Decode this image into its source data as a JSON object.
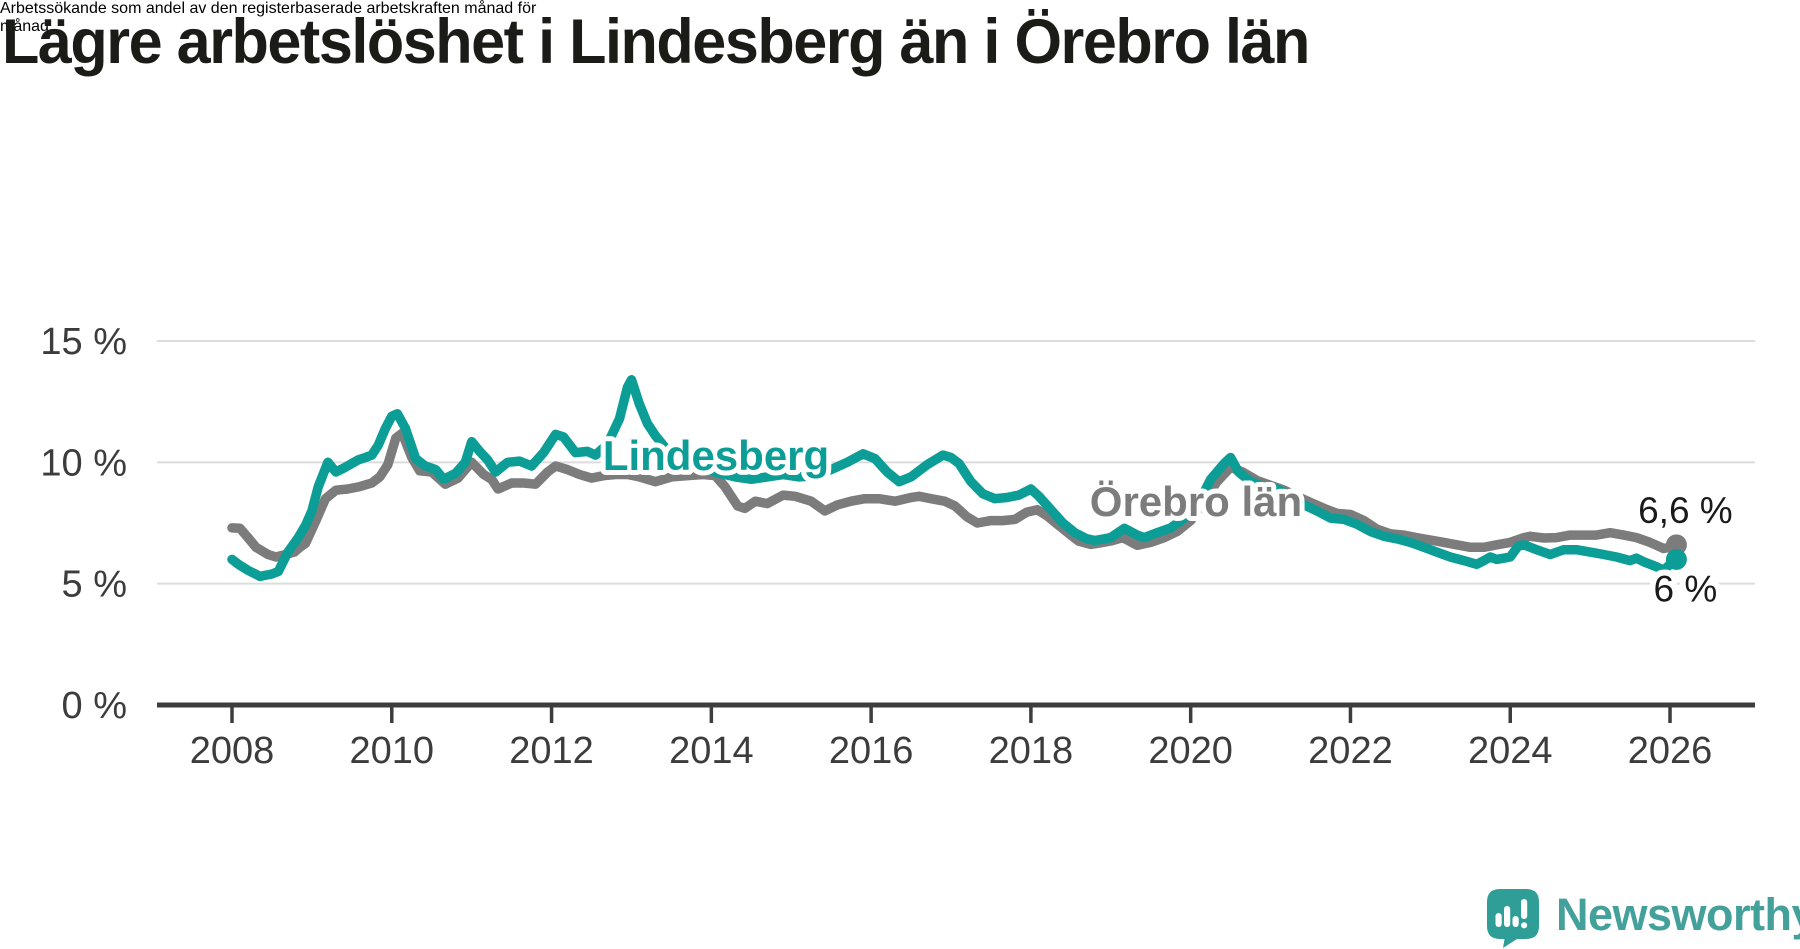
{
  "header": {
    "title": "Lägre arbetslöshet i Lindesberg än i Örebro län",
    "subtitle_lines": [
      "Arbetssökande som andel av den registerbaserade arbetskraften månad för",
      "månad."
    ]
  },
  "branding": {
    "name": "Newsworthy",
    "logo_icon": "newsworthy-speech-bubble-bars-icon"
  },
  "colors": {
    "lindesberg_teal": "#0c9e96",
    "orebro_gray": "#7c7c7c",
    "text_dark": "#1a1a1a",
    "axis_text": "#3c3c3c",
    "gridline": "#dcdcdc",
    "axis_line": "#3d3d3d",
    "logo_teal": "#2f9e97",
    "wordmark_teal": "#43a09b"
  },
  "chart_data": {
    "type": "line",
    "title": "Lägre arbetslöshet i Lindesberg än i Örebro län",
    "subtitle": "Arbetssökande som andel av den registerbaserade arbetskraften månad för månad.",
    "unit": "%",
    "grid": "horizontal",
    "legend_position": "inline-series-labels",
    "x_axis": {
      "tick_years": [
        2008,
        2010,
        2012,
        2014,
        2016,
        2018,
        2020,
        2022,
        2024,
        2026
      ],
      "min": 2007.05,
      "max": 2027.1
    },
    "y_axis": {
      "ticks": [
        0,
        5,
        10,
        15
      ],
      "tick_labels": [
        "0 %",
        "5 %",
        "10 %",
        "15 %"
      ],
      "min": 0,
      "max": 15.5
    },
    "series": [
      {
        "name": "Lindesberg",
        "color": "#0c9e96",
        "end_value": 6.0,
        "end_label": "6 %",
        "points": [
          [
            2008.0,
            6.0
          ],
          [
            2008.08,
            5.8
          ],
          [
            2008.2,
            5.55
          ],
          [
            2008.35,
            5.3
          ],
          [
            2008.5,
            5.4
          ],
          [
            2008.58,
            5.5
          ],
          [
            2008.7,
            6.3
          ],
          [
            2008.83,
            6.9
          ],
          [
            2008.92,
            7.4
          ],
          [
            2009.0,
            8.0
          ],
          [
            2009.08,
            9.0
          ],
          [
            2009.2,
            10.0
          ],
          [
            2009.3,
            9.6
          ],
          [
            2009.42,
            9.8
          ],
          [
            2009.5,
            9.95
          ],
          [
            2009.58,
            10.1
          ],
          [
            2009.67,
            10.2
          ],
          [
            2009.75,
            10.3
          ],
          [
            2009.83,
            10.7
          ],
          [
            2009.92,
            11.4
          ],
          [
            2010.0,
            11.9
          ],
          [
            2010.07,
            12.0
          ],
          [
            2010.17,
            11.4
          ],
          [
            2010.3,
            10.15
          ],
          [
            2010.42,
            9.85
          ],
          [
            2010.55,
            9.7
          ],
          [
            2010.65,
            9.3
          ],
          [
            2010.8,
            9.55
          ],
          [
            2010.92,
            10.0
          ],
          [
            2011.0,
            10.85
          ],
          [
            2011.1,
            10.45
          ],
          [
            2011.2,
            10.1
          ],
          [
            2011.3,
            9.6
          ],
          [
            2011.45,
            10.0
          ],
          [
            2011.6,
            10.05
          ],
          [
            2011.75,
            9.85
          ],
          [
            2011.9,
            10.4
          ],
          [
            2012.05,
            11.15
          ],
          [
            2012.15,
            11.05
          ],
          [
            2012.3,
            10.4
          ],
          [
            2012.45,
            10.45
          ],
          [
            2012.55,
            10.3
          ],
          [
            2012.7,
            10.75
          ],
          [
            2012.85,
            11.8
          ],
          [
            2012.95,
            13.1
          ],
          [
            2013.0,
            13.4
          ],
          [
            2013.1,
            12.4
          ],
          [
            2013.2,
            11.6
          ],
          [
            2013.3,
            11.1
          ],
          [
            2013.5,
            10.3
          ],
          [
            2013.7,
            9.95
          ],
          [
            2013.9,
            9.75
          ],
          [
            2014.1,
            9.55
          ],
          [
            2014.3,
            9.4
          ],
          [
            2014.5,
            9.3
          ],
          [
            2014.7,
            9.4
          ],
          [
            2014.9,
            9.5
          ],
          [
            2015.1,
            9.4
          ],
          [
            2015.3,
            9.45
          ],
          [
            2015.5,
            9.7
          ],
          [
            2015.7,
            10.0
          ],
          [
            2015.9,
            10.35
          ],
          [
            2016.05,
            10.15
          ],
          [
            2016.2,
            9.6
          ],
          [
            2016.35,
            9.2
          ],
          [
            2016.5,
            9.4
          ],
          [
            2016.7,
            9.9
          ],
          [
            2016.9,
            10.3
          ],
          [
            2017.0,
            10.2
          ],
          [
            2017.1,
            9.95
          ],
          [
            2017.25,
            9.2
          ],
          [
            2017.4,
            8.7
          ],
          [
            2017.55,
            8.5
          ],
          [
            2017.7,
            8.55
          ],
          [
            2017.85,
            8.65
          ],
          [
            2018.0,
            8.9
          ],
          [
            2018.1,
            8.6
          ],
          [
            2018.25,
            8.05
          ],
          [
            2018.4,
            7.5
          ],
          [
            2018.55,
            7.1
          ],
          [
            2018.7,
            6.85
          ],
          [
            2018.8,
            6.78
          ],
          [
            2018.92,
            6.85
          ],
          [
            2019.0,
            6.9
          ],
          [
            2019.17,
            7.28
          ],
          [
            2019.33,
            7.0
          ],
          [
            2019.42,
            6.9
          ],
          [
            2019.58,
            7.1
          ],
          [
            2019.75,
            7.3
          ],
          [
            2019.92,
            7.7
          ],
          [
            2020.08,
            8.2
          ],
          [
            2020.25,
            9.3
          ],
          [
            2020.42,
            9.95
          ],
          [
            2020.5,
            10.2
          ],
          [
            2020.6,
            9.6
          ],
          [
            2020.75,
            9.2
          ],
          [
            2020.92,
            9.0
          ],
          [
            2021.08,
            8.9
          ],
          [
            2021.25,
            8.6
          ],
          [
            2021.42,
            8.25
          ],
          [
            2021.58,
            8.0
          ],
          [
            2021.75,
            7.7
          ],
          [
            2021.92,
            7.65
          ],
          [
            2022.08,
            7.45
          ],
          [
            2022.25,
            7.15
          ],
          [
            2022.42,
            6.95
          ],
          [
            2022.58,
            6.85
          ],
          [
            2022.75,
            6.7
          ],
          [
            2022.92,
            6.5
          ],
          [
            2023.08,
            6.3
          ],
          [
            2023.25,
            6.1
          ],
          [
            2023.42,
            5.95
          ],
          [
            2023.58,
            5.8
          ],
          [
            2023.67,
            5.95
          ],
          [
            2023.75,
            6.1
          ],
          [
            2023.83,
            6.0
          ],
          [
            2023.92,
            6.05
          ],
          [
            2024.0,
            6.1
          ],
          [
            2024.1,
            6.55
          ],
          [
            2024.17,
            6.6
          ],
          [
            2024.33,
            6.4
          ],
          [
            2024.5,
            6.2
          ],
          [
            2024.67,
            6.4
          ],
          [
            2024.83,
            6.4
          ],
          [
            2025.0,
            6.3
          ],
          [
            2025.17,
            6.2
          ],
          [
            2025.33,
            6.1
          ],
          [
            2025.5,
            5.95
          ],
          [
            2025.58,
            6.05
          ],
          [
            2025.67,
            5.9
          ],
          [
            2025.83,
            5.7
          ],
          [
            2025.92,
            5.55
          ],
          [
            2026.0,
            5.8
          ],
          [
            2026.08,
            6.0
          ]
        ]
      },
      {
        "name": "Örebro län",
        "color": "#7c7c7c",
        "end_value": 6.6,
        "end_label": "6,6 %",
        "points": [
          [
            2008.0,
            7.3
          ],
          [
            2008.1,
            7.28
          ],
          [
            2008.2,
            6.9
          ],
          [
            2008.3,
            6.5
          ],
          [
            2008.45,
            6.2
          ],
          [
            2008.55,
            6.1
          ],
          [
            2008.65,
            6.18
          ],
          [
            2008.78,
            6.3
          ],
          [
            2008.85,
            6.5
          ],
          [
            2008.92,
            6.66
          ],
          [
            2009.05,
            7.6
          ],
          [
            2009.17,
            8.5
          ],
          [
            2009.3,
            8.85
          ],
          [
            2009.45,
            8.9
          ],
          [
            2009.6,
            9.0
          ],
          [
            2009.75,
            9.15
          ],
          [
            2009.85,
            9.4
          ],
          [
            2009.95,
            9.9
          ],
          [
            2010.05,
            11.0
          ],
          [
            2010.13,
            11.2
          ],
          [
            2010.25,
            10.2
          ],
          [
            2010.35,
            9.65
          ],
          [
            2010.5,
            9.6
          ],
          [
            2010.67,
            9.1
          ],
          [
            2010.83,
            9.35
          ],
          [
            2010.92,
            9.7
          ],
          [
            2011.0,
            10.0
          ],
          [
            2011.15,
            9.5
          ],
          [
            2011.25,
            9.3
          ],
          [
            2011.33,
            8.9
          ],
          [
            2011.5,
            9.15
          ],
          [
            2011.65,
            9.15
          ],
          [
            2011.8,
            9.1
          ],
          [
            2011.95,
            9.6
          ],
          [
            2012.05,
            9.85
          ],
          [
            2012.2,
            9.7
          ],
          [
            2012.35,
            9.5
          ],
          [
            2012.5,
            9.35
          ],
          [
            2012.65,
            9.45
          ],
          [
            2012.8,
            9.5
          ],
          [
            2012.95,
            9.5
          ],
          [
            2013.1,
            9.4
          ],
          [
            2013.3,
            9.2
          ],
          [
            2013.5,
            9.4
          ],
          [
            2013.7,
            9.45
          ],
          [
            2013.9,
            9.5
          ],
          [
            2014.05,
            9.45
          ],
          [
            2014.17,
            9.0
          ],
          [
            2014.33,
            8.2
          ],
          [
            2014.42,
            8.1
          ],
          [
            2014.55,
            8.4
          ],
          [
            2014.7,
            8.3
          ],
          [
            2014.9,
            8.65
          ],
          [
            2015.05,
            8.6
          ],
          [
            2015.25,
            8.4
          ],
          [
            2015.42,
            8.0
          ],
          [
            2015.58,
            8.25
          ],
          [
            2015.75,
            8.4
          ],
          [
            2015.92,
            8.5
          ],
          [
            2016.1,
            8.5
          ],
          [
            2016.3,
            8.4
          ],
          [
            2016.5,
            8.55
          ],
          [
            2016.6,
            8.6
          ],
          [
            2016.75,
            8.5
          ],
          [
            2016.92,
            8.4
          ],
          [
            2017.05,
            8.2
          ],
          [
            2017.2,
            7.75
          ],
          [
            2017.33,
            7.5
          ],
          [
            2017.5,
            7.6
          ],
          [
            2017.65,
            7.6
          ],
          [
            2017.8,
            7.65
          ],
          [
            2017.95,
            7.95
          ],
          [
            2018.08,
            8.05
          ],
          [
            2018.2,
            7.8
          ],
          [
            2018.33,
            7.45
          ],
          [
            2018.5,
            7.0
          ],
          [
            2018.6,
            6.75
          ],
          [
            2018.75,
            6.62
          ],
          [
            2018.9,
            6.7
          ],
          [
            2019.0,
            6.76
          ],
          [
            2019.15,
            6.9
          ],
          [
            2019.33,
            6.58
          ],
          [
            2019.5,
            6.7
          ],
          [
            2019.67,
            6.9
          ],
          [
            2019.83,
            7.15
          ],
          [
            2020.0,
            7.6
          ],
          [
            2020.17,
            8.4
          ],
          [
            2020.33,
            9.2
          ],
          [
            2020.5,
            9.8
          ],
          [
            2020.65,
            9.6
          ],
          [
            2020.83,
            9.25
          ],
          [
            2021.0,
            9.05
          ],
          [
            2021.17,
            8.85
          ],
          [
            2021.33,
            8.6
          ],
          [
            2021.5,
            8.35
          ],
          [
            2021.67,
            8.1
          ],
          [
            2021.83,
            7.9
          ],
          [
            2022.0,
            7.85
          ],
          [
            2022.17,
            7.6
          ],
          [
            2022.33,
            7.25
          ],
          [
            2022.5,
            7.05
          ],
          [
            2022.67,
            7.0
          ],
          [
            2022.83,
            6.9
          ],
          [
            2023.0,
            6.8
          ],
          [
            2023.17,
            6.7
          ],
          [
            2023.33,
            6.6
          ],
          [
            2023.5,
            6.5
          ],
          [
            2023.67,
            6.5
          ],
          [
            2023.83,
            6.6
          ],
          [
            2024.0,
            6.7
          ],
          [
            2024.17,
            6.9
          ],
          [
            2024.25,
            6.95
          ],
          [
            2024.42,
            6.88
          ],
          [
            2024.58,
            6.9
          ],
          [
            2024.75,
            7.0
          ],
          [
            2024.92,
            7.0
          ],
          [
            2025.08,
            7.0
          ],
          [
            2025.25,
            7.1
          ],
          [
            2025.42,
            7.0
          ],
          [
            2025.58,
            6.9
          ],
          [
            2025.75,
            6.7
          ],
          [
            2025.92,
            6.45
          ],
          [
            2026.0,
            6.5
          ],
          [
            2026.08,
            6.6
          ]
        ]
      }
    ]
  }
}
